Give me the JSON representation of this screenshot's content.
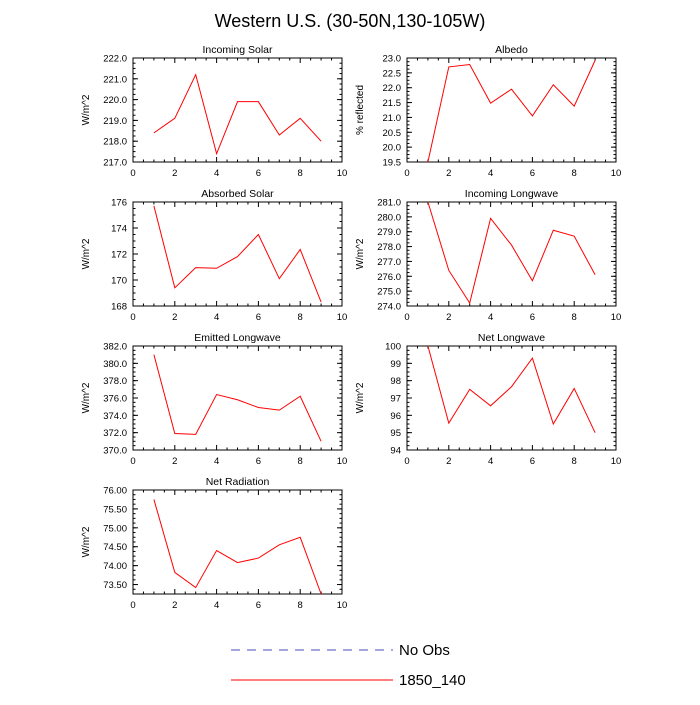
{
  "figure_title": "Western U.S. (30-50N,130-105W)",
  "legend": [
    {
      "label": "No Obs",
      "color": "#4d4dbf",
      "style": "dashed"
    },
    {
      "label": "1850_140",
      "color": "#ff0000",
      "style": "solid"
    }
  ],
  "chart_data": [
    {
      "type": "line",
      "title": "Incoming Solar",
      "xlabel": "",
      "ylabel": "W/m^2",
      "xlim": [
        0,
        10
      ],
      "ylim": [
        217.0,
        222.0
      ],
      "xticks": [
        "0",
        "2",
        "4",
        "6",
        "8",
        "10"
      ],
      "yticks": [
        "217.0",
        "218.0",
        "219.0",
        "220.0",
        "221.0",
        "222.0"
      ],
      "series": [
        {
          "name": "1850_140",
          "color": "#ff0000",
          "x": [
            1,
            2,
            3,
            4,
            5,
            6,
            7,
            8,
            9
          ],
          "y": [
            218.4,
            219.1,
            221.2,
            217.4,
            219.9,
            219.9,
            218.3,
            219.1,
            218.0
          ]
        }
      ]
    },
    {
      "type": "line",
      "title": "Albedo",
      "xlabel": "",
      "ylabel": "% reflected",
      "xlim": [
        0,
        10
      ],
      "ylim": [
        19.5,
        23.0
      ],
      "xticks": [
        "0",
        "2",
        "4",
        "6",
        "8",
        "10"
      ],
      "yticks": [
        "19.5",
        "20.0",
        "20.5",
        "21.0",
        "21.5",
        "22.0",
        "22.5",
        "23.0"
      ],
      "series": [
        {
          "name": "1850_140",
          "color": "#ff0000",
          "x": [
            1,
            2,
            3,
            4,
            5,
            6,
            7,
            8,
            9
          ],
          "y": [
            19.5,
            22.7,
            22.78,
            21.48,
            21.95,
            21.05,
            22.1,
            21.38,
            22.92
          ]
        }
      ]
    },
    {
      "type": "line",
      "title": "Absorbed Solar",
      "xlabel": "",
      "ylabel": "W/m^2",
      "xlim": [
        0,
        10
      ],
      "ylim": [
        168,
        176
      ],
      "xticks": [
        "0",
        "2",
        "4",
        "6",
        "8",
        "10"
      ],
      "yticks": [
        "168",
        "170",
        "172",
        "174",
        "176"
      ],
      "series": [
        {
          "name": "1850_140",
          "color": "#ff0000",
          "x": [
            1,
            2,
            3,
            4,
            5,
            6,
            7,
            8,
            9
          ],
          "y": [
            175.7,
            169.4,
            170.95,
            170.9,
            171.8,
            173.5,
            170.1,
            172.35,
            168.3
          ]
        }
      ]
    },
    {
      "type": "line",
      "title": "Incoming Longwave",
      "xlabel": "",
      "ylabel": "W/m^2",
      "xlim": [
        0,
        10
      ],
      "ylim": [
        274.0,
        281.0
      ],
      "xticks": [
        "0",
        "2",
        "4",
        "6",
        "8",
        "10"
      ],
      "yticks": [
        "274.0",
        "275.0",
        "276.0",
        "277.0",
        "278.0",
        "279.0",
        "280.0",
        "281.0"
      ],
      "series": [
        {
          "name": "1850_140",
          "color": "#ff0000",
          "x": [
            1,
            2,
            3,
            4,
            5,
            6,
            7,
            8,
            9
          ],
          "y": [
            281.0,
            276.4,
            274.2,
            279.9,
            278.1,
            275.7,
            279.1,
            278.7,
            276.1
          ]
        }
      ]
    },
    {
      "type": "line",
      "title": "Emitted Longwave",
      "xlabel": "",
      "ylabel": "W/m^2",
      "xlim": [
        0,
        10
      ],
      "ylim": [
        370.0,
        382.0
      ],
      "xticks": [
        "0",
        "2",
        "4",
        "6",
        "8",
        "10"
      ],
      "yticks": [
        "370.0",
        "372.0",
        "374.0",
        "376.0",
        "378.0",
        "380.0",
        "382.0"
      ],
      "series": [
        {
          "name": "1850_140",
          "color": "#ff0000",
          "x": [
            1,
            2,
            3,
            4,
            5,
            6,
            7,
            8,
            9
          ],
          "y": [
            381.0,
            371.9,
            371.8,
            376.4,
            375.8,
            374.9,
            374.6,
            376.2,
            371.0
          ]
        }
      ]
    },
    {
      "type": "line",
      "title": "Net Longwave",
      "xlabel": "",
      "ylabel": "W/m^2",
      "xlim": [
        0,
        10
      ],
      "ylim": [
        94,
        100
      ],
      "xticks": [
        "0",
        "2",
        "4",
        "6",
        "8",
        "10"
      ],
      "yticks": [
        "94",
        "95",
        "96",
        "97",
        "98",
        "99",
        "100"
      ],
      "series": [
        {
          "name": "1850_140",
          "color": "#ff0000",
          "x": [
            1,
            2,
            3,
            4,
            5,
            6,
            7,
            8,
            9
          ],
          "y": [
            100.0,
            95.55,
            97.5,
            96.55,
            97.65,
            99.3,
            95.5,
            97.55,
            95.0
          ]
        }
      ]
    },
    {
      "type": "line",
      "title": "Net Radiation",
      "xlabel": "",
      "ylabel": "W/m^2",
      "xlim": [
        0,
        10
      ],
      "ylim": [
        73.25,
        76.0
      ],
      "xticks": [
        "0",
        "2",
        "4",
        "6",
        "8",
        "10"
      ],
      "yticks": [
        "73.50",
        "74.00",
        "74.50",
        "75.00",
        "75.50",
        "76.00"
      ],
      "series": [
        {
          "name": "1850_140",
          "color": "#ff0000",
          "x": [
            1,
            2,
            3,
            4,
            5,
            6,
            7,
            8,
            9
          ],
          "y": [
            75.75,
            73.82,
            73.42,
            74.4,
            74.08,
            74.2,
            74.55,
            74.75,
            73.25
          ]
        }
      ]
    }
  ]
}
